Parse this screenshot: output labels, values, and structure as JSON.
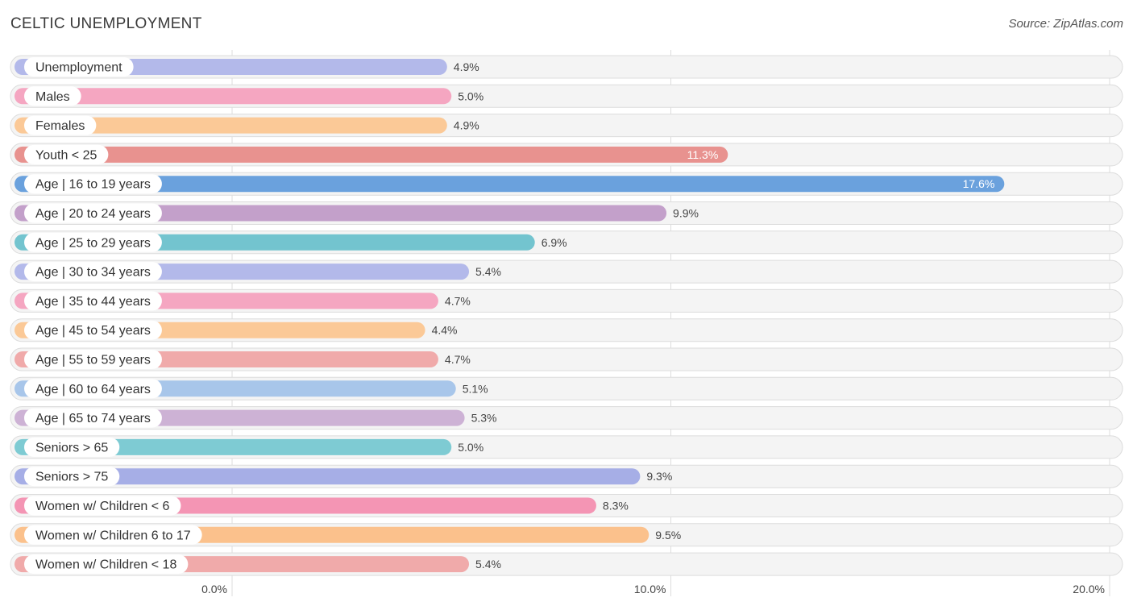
{
  "header": {
    "title": "CELTIC UNEMPLOYMENT",
    "source": "Source: ZipAtlas.com"
  },
  "chart_data": {
    "type": "bar",
    "orientation": "horizontal",
    "title": "CELTIC UNEMPLOYMENT",
    "xlim": [
      0,
      20
    ],
    "grid": true,
    "ticks": [
      {
        "value": 0,
        "label": "0.0%"
      },
      {
        "value": 10,
        "label": "10.0%"
      },
      {
        "value": 20,
        "label": "20.0%"
      }
    ],
    "categories": [
      "Unemployment",
      "Males",
      "Females",
      "Youth < 25",
      "Age | 16 to 19 years",
      "Age | 20 to 24 years",
      "Age | 25 to 29 years",
      "Age | 30 to 34 years",
      "Age | 35 to 44 years",
      "Age | 45 to 54 years",
      "Age | 55 to 59 years",
      "Age | 60 to 64 years",
      "Age | 65 to 74 years",
      "Seniors > 65",
      "Seniors > 75",
      "Women w/ Children < 6",
      "Women w/ Children 6 to 17",
      "Women w/ Children < 18"
    ],
    "values": [
      4.9,
      5.0,
      4.9,
      11.3,
      17.6,
      9.9,
      6.9,
      5.4,
      4.7,
      4.4,
      4.7,
      5.1,
      5.3,
      5.0,
      9.3,
      8.3,
      9.5,
      5.4
    ],
    "value_labels": [
      "4.9%",
      "5.0%",
      "4.9%",
      "11.3%",
      "17.6%",
      "9.9%",
      "6.9%",
      "5.4%",
      "4.7%",
      "4.4%",
      "4.7%",
      "5.1%",
      "5.3%",
      "5.0%",
      "9.3%",
      "8.3%",
      "9.5%",
      "5.4%"
    ],
    "colors": [
      "#b3b9ea",
      "#f5a6c1",
      "#fbc997",
      "#e8928f",
      "#6aa1dd",
      "#c3a0ca",
      "#73c4cf",
      "#b3b9ea",
      "#f5a6c1",
      "#fbc997",
      "#f0aaaa",
      "#a8c6ea",
      "#cdb2d5",
      "#7ecbd3",
      "#a6aee6",
      "#f495b4",
      "#fbc18c",
      "#f0aaaa"
    ]
  }
}
